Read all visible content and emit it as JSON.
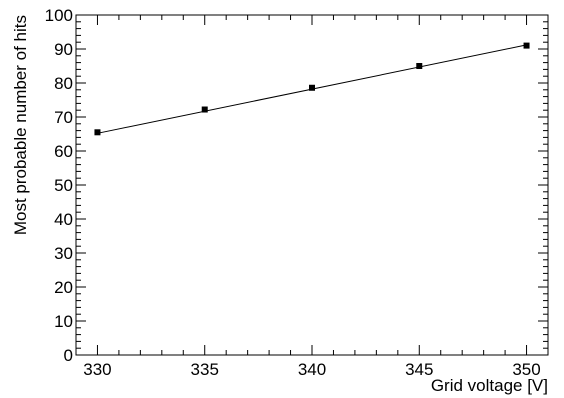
{
  "chart_data": {
    "type": "scatter",
    "xlabel": "Grid voltage [V]",
    "ylabel": "Most probable number of hits",
    "xlim": [
      329,
      351
    ],
    "ylim": [
      0,
      100
    ],
    "x_ticks": [
      330,
      335,
      340,
      345,
      350
    ],
    "y_ticks": [
      0,
      10,
      20,
      30,
      40,
      50,
      60,
      70,
      80,
      90,
      100
    ],
    "grid": false,
    "series": [
      {
        "x": [
          330,
          335,
          340,
          345,
          350
        ],
        "y": [
          65.5,
          72.2,
          78.6,
          85.0,
          91.0
        ],
        "marker": "square",
        "color": "#000000"
      }
    ],
    "fit_line": {
      "x": [
        330,
        350
      ],
      "y": [
        65.2,
        91.2
      ],
      "color": "#000000"
    }
  }
}
